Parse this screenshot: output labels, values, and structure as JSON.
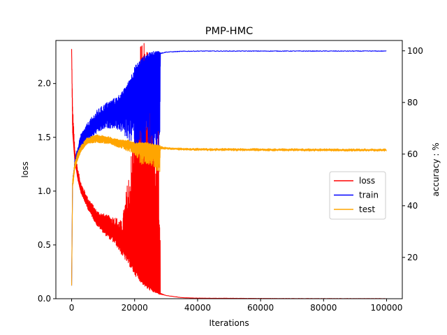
{
  "chart_data": {
    "type": "line",
    "title": "PMP-HMC",
    "xlabel": "Iterations",
    "ylabel": "loss",
    "ylabel_right": "accuracy : %",
    "xlim": [
      -5000,
      105000
    ],
    "ylim": [
      0,
      2.4
    ],
    "ylim_right": [
      4,
      104
    ],
    "xticks": [
      0,
      20000,
      40000,
      60000,
      80000,
      100000
    ],
    "yticks": [
      0.0,
      0.5,
      1.0,
      1.5,
      2.0
    ],
    "yticks_right": [
      20,
      40,
      60,
      80,
      100
    ],
    "legend": {
      "position": "center-right",
      "entries": [
        "loss",
        "train",
        "test"
      ]
    },
    "grid": false,
    "series": [
      {
        "name": "loss",
        "axis": "left",
        "color": "#ff0000",
        "envelope": {
          "x": [
            0,
            300,
            1000,
            2000,
            3000,
            5000,
            8000,
            11000,
            14000,
            16000,
            18000,
            20000,
            22000,
            24000,
            26000,
            28000,
            28200,
            30000,
            35000,
            40000,
            60000,
            80000,
            100000
          ],
          "y_center": [
            2.32,
            1.55,
            1.28,
            1.12,
            1.0,
            0.88,
            0.74,
            0.66,
            0.6,
            0.52,
            0.42,
            0.33,
            0.24,
            0.16,
            0.1,
            0.06,
            0.05,
            0.03,
            0.01,
            0.005,
            0.002,
            0.001,
            0.001
          ],
          "y_low": [
            2.32,
            1.55,
            1.28,
            1.1,
            0.98,
            0.84,
            0.68,
            0.58,
            0.5,
            0.4,
            0.32,
            0.22,
            0.15,
            0.09,
            0.06,
            0.04,
            0.04,
            0.03,
            0.01,
            0.005,
            0.002,
            0.001,
            0.001
          ],
          "y_high": [
            2.32,
            1.82,
            1.4,
            1.2,
            1.08,
            0.95,
            0.82,
            0.78,
            0.76,
            0.72,
            1.15,
            1.65,
            2.4,
            2.4,
            2.0,
            1.6,
            0.05,
            0.03,
            0.01,
            0.005,
            0.002,
            0.001,
            0.001
          ]
        }
      },
      {
        "name": "train",
        "axis": "right",
        "color": "#0000ff",
        "envelope": {
          "x": [
            0,
            300,
            1000,
            2000,
            3000,
            5000,
            8000,
            11000,
            14000,
            16000,
            18000,
            20000,
            22000,
            24000,
            26000,
            28000,
            28200,
            30000,
            35000,
            40000,
            60000,
            80000,
            100000
          ],
          "y_center": [
            9,
            48,
            55,
            60,
            64,
            68,
            72,
            75,
            77,
            80,
            84,
            88,
            92,
            95,
            97,
            98.5,
            99,
            99.5,
            99.8,
            99.9,
            99.9,
            99.9,
            99.9
          ],
          "y_low": [
            9,
            48,
            55,
            59,
            62,
            65,
            68,
            70,
            70,
            68,
            65,
            62,
            60,
            58,
            58,
            58,
            99,
            99.5,
            99.8,
            99.9,
            99.9,
            99.9,
            99.9
          ],
          "y_high": [
            9,
            50,
            58,
            63,
            68,
            72,
            77,
            80,
            82,
            84,
            88,
            94,
            97,
            99,
            99.8,
            100,
            99,
            99.5,
            99.8,
            99.9,
            99.9,
            99.9,
            99.9
          ]
        }
      },
      {
        "name": "test",
        "axis": "right",
        "color": "#ffa500",
        "envelope": {
          "x": [
            0,
            300,
            1000,
            2000,
            3000,
            5000,
            8000,
            11000,
            14000,
            16000,
            18000,
            20000,
            22000,
            24000,
            26000,
            28000,
            28200,
            30000,
            35000,
            40000,
            60000,
            80000,
            100000
          ],
          "y_center": [
            9,
            48,
            55,
            59,
            62,
            65,
            66,
            65.5,
            65,
            64.5,
            64,
            63.5,
            63.5,
            63,
            63,
            62.5,
            62.5,
            62.2,
            62,
            61.8,
            61.7,
            61.6,
            61.6
          ],
          "y_low": [
            9,
            46,
            54,
            58,
            61,
            64,
            64.5,
            64,
            63,
            62,
            61,
            60,
            56,
            56,
            55,
            52,
            62,
            61.8,
            61.5,
            61.3,
            61.2,
            61.1,
            61.1
          ],
          "y_high": [
            9,
            50,
            57,
            61,
            63.5,
            66.5,
            67.5,
            67,
            66,
            65.5,
            65.5,
            64.5,
            64.5,
            64.5,
            64,
            63.5,
            63,
            62.7,
            62.4,
            62.3,
            62.2,
            62.1,
            62.1
          ]
        }
      }
    ]
  }
}
